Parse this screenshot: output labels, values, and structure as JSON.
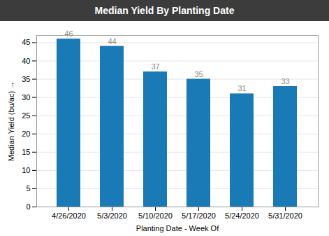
{
  "chart_data": {
    "type": "bar",
    "title": "Median Yield By Planting Date",
    "xlabel": "Planting Date - Week Of",
    "ylabel": "Median Yield (bu/ac)",
    "categories": [
      "4/26/2020",
      "5/3/2020",
      "5/10/2020",
      "5/17/2020",
      "5/24/2020",
      "5/31/2020"
    ],
    "values": [
      46,
      44,
      37,
      35,
      31,
      33
    ],
    "color": "#1a7ab5",
    "ylim": [
      0,
      47
    ],
    "yticks": [
      0,
      5,
      10,
      15,
      20,
      25,
      30,
      35,
      40,
      45
    ],
    "grid": true,
    "data_labels": true
  }
}
